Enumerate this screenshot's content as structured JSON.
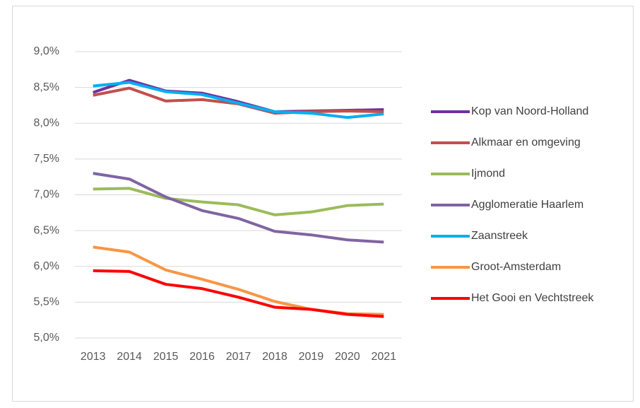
{
  "chart_data": {
    "type": "line",
    "categories": [
      "2013",
      "2014",
      "2015",
      "2016",
      "2017",
      "2018",
      "2019",
      "2020",
      "2021"
    ],
    "series": [
      {
        "name": "Kop van Noord-Holland",
        "color": "#7030a0",
        "values": [
          8.43,
          8.6,
          8.45,
          8.42,
          8.3,
          8.16,
          8.17,
          8.18,
          8.19
        ]
      },
      {
        "name": "Alkmaar en omgeving",
        "color": "#c0504d",
        "values": [
          8.39,
          8.49,
          8.31,
          8.33,
          8.27,
          8.14,
          8.16,
          8.17,
          8.16
        ]
      },
      {
        "name": "Ijmond",
        "color": "#9bbb59",
        "values": [
          7.08,
          7.09,
          6.95,
          6.9,
          6.86,
          6.72,
          6.76,
          6.85,
          6.87
        ]
      },
      {
        "name": "Agglomeratie Haarlem",
        "color": "#8064a2",
        "values": [
          7.3,
          7.22,
          6.97,
          6.78,
          6.67,
          6.49,
          6.44,
          6.37,
          6.34
        ]
      },
      {
        "name": "Zaanstreek",
        "color": "#00b0f0",
        "values": [
          8.52,
          8.57,
          8.44,
          8.4,
          8.28,
          8.16,
          8.14,
          8.08,
          8.13
        ]
      },
      {
        "name": "Groot-Amsterdam",
        "color": "#f79646",
        "values": [
          6.27,
          6.2,
          5.95,
          5.82,
          5.68,
          5.51,
          5.4,
          5.34,
          5.33
        ]
      },
      {
        "name": "Het Gooi en Vechtstreek",
        "color": "#ff0000",
        "values": [
          5.94,
          5.93,
          5.75,
          5.69,
          5.57,
          5.43,
          5.4,
          5.33,
          5.3
        ]
      }
    ],
    "ylim": [
      5.0,
      9.0
    ],
    "yticks": [
      {
        "value": 5.0,
        "label": "5,0%"
      },
      {
        "value": 5.5,
        "label": "5,5%"
      },
      {
        "value": 6.0,
        "label": "6,0%"
      },
      {
        "value": 6.5,
        "label": "6,5%"
      },
      {
        "value": 7.0,
        "label": "7,0%"
      },
      {
        "value": 7.5,
        "label": "7,5%"
      },
      {
        "value": 8.0,
        "label": "8,0%"
      },
      {
        "value": 8.5,
        "label": "8,5%"
      },
      {
        "value": 9.0,
        "label": "9,0%"
      }
    ],
    "grid": true,
    "legend": "right"
  }
}
